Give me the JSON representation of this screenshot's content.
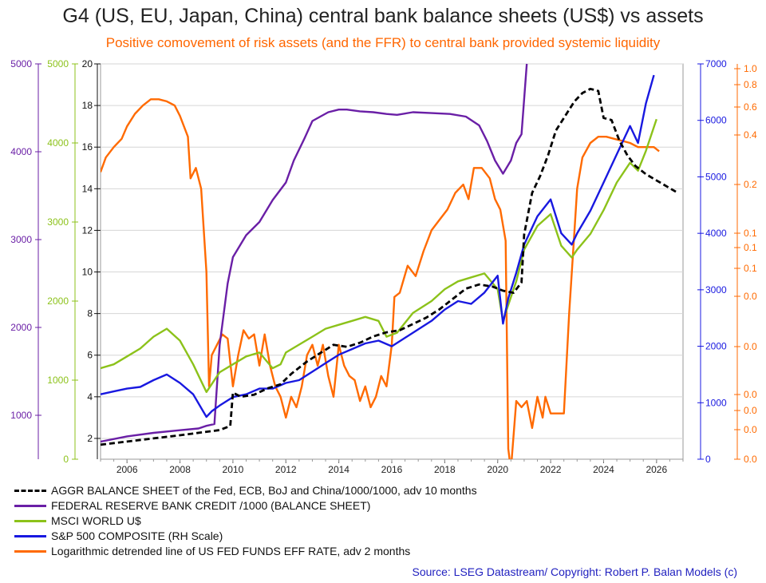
{
  "chart_data": {
    "type": "line",
    "title": "G4 (US, EU, Japan, China) central bank balance sheets (US$) vs assets",
    "subtitle": "Positive comovement of risk assets (and the FFR) to central bank provided systemic liquidity",
    "source": "Source: LSEG Datastream/ Copyright: Robert P. Balan Models (c)",
    "x_ticks": [
      "2006",
      "2008",
      "2010",
      "2012",
      "2014",
      "2016",
      "2018",
      "2020",
      "2022",
      "2024",
      "2026"
    ],
    "xlim": [
      2005.0,
      2027.0
    ],
    "grid": true,
    "axes": {
      "center": {
        "color": "#111111",
        "ticks": [
          "2",
          "4",
          "6",
          "8",
          "10",
          "12",
          "14",
          "16",
          "18",
          "20"
        ],
        "ylim": [
          1.0,
          20.0
        ]
      },
      "purple": {
        "color": "#6a1fa6",
        "ticks": [
          "1000",
          "2000",
          "3000",
          "4000",
          "5000"
        ],
        "ylim": [
          500,
          5000
        ]
      },
      "green": {
        "color": "#8cc21a",
        "ticks": [
          "0",
          "1000",
          "2000",
          "3000",
          "4000",
          "5000"
        ],
        "ylim": [
          0,
          5000
        ]
      },
      "blue": {
        "color": "#1818e0",
        "ticks": [
          "0",
          "1000",
          "2000",
          "3000",
          "4000",
          "5000",
          "6000",
          "7000"
        ],
        "ylim": [
          0,
          7000
        ]
      },
      "orange": {
        "color": "#ff6a00",
        "ticks": [
          "1.0",
          "0.8",
          "0.6",
          "0.4",
          "0.2",
          "0.1",
          "0.1",
          "0.1",
          "0.0",
          "0.0",
          "0.0",
          "0.0",
          "0.0",
          "0.0"
        ]
      }
    },
    "series": [
      {
        "name": "AGGR BALANCE SHEET of the Fed, ECB, BoJ and China/1000/1000, adv 10 months",
        "color": "#000000",
        "dashed": true,
        "axis": "center",
        "x": [
          2005.0,
          2006.0,
          2007.0,
          2008.0,
          2008.9,
          2009.2,
          2009.5,
          2009.9,
          2010.0,
          2010.3,
          2010.8,
          2011.3,
          2011.8,
          2012.2,
          2012.8,
          2013.3,
          2013.8,
          2014.3,
          2014.8,
          2015.3,
          2015.8,
          2016.3,
          2016.8,
          2017.3,
          2017.8,
          2018.3,
          2018.8,
          2019.3,
          2019.8,
          2020.2,
          2020.6,
          2020.9,
          2021.0,
          2021.3,
          2021.6,
          2021.9,
          2022.2,
          2022.6,
          2022.9,
          2023.2,
          2023.5,
          2023.8,
          2024.0,
          2024.3,
          2024.6,
          2024.9,
          2025.2,
          2025.6,
          2026.0,
          2026.4,
          2026.8
        ],
        "y": [
          1.7,
          1.85,
          2.0,
          2.15,
          2.3,
          2.35,
          2.4,
          2.6,
          4.2,
          4.0,
          4.1,
          4.4,
          4.6,
          5.1,
          5.7,
          6.1,
          6.5,
          6.4,
          6.6,
          6.9,
          7.1,
          7.2,
          7.5,
          7.8,
          8.2,
          8.7,
          9.2,
          9.4,
          9.3,
          9.1,
          9.0,
          9.5,
          11.8,
          13.8,
          14.6,
          15.6,
          16.8,
          17.6,
          18.2,
          18.6,
          18.8,
          18.7,
          17.4,
          17.3,
          16.3,
          15.6,
          15.1,
          14.7,
          14.4,
          14.1,
          13.8
        ]
      },
      {
        "name": "FEDERAL RESERVE BANK CREDIT /1000 (BALANCE SHEET)",
        "color": "#6a1fa6",
        "axis": "purple",
        "x": [
          2005.0,
          2006.0,
          2007.0,
          2008.0,
          2008.7,
          2009.0,
          2009.3,
          2009.5,
          2009.8,
          2010.0,
          2010.5,
          2011.0,
          2011.5,
          2012.0,
          2012.3,
          2012.7,
          2013.0,
          2013.3,
          2013.6,
          2014.0,
          2014.3,
          2014.8,
          2015.3,
          2015.8,
          2016.2,
          2016.8,
          2017.5,
          2018.2,
          2018.8,
          2019.3,
          2019.6,
          2019.9,
          2020.2,
          2020.5,
          2020.7,
          2020.9,
          2021.0,
          2021.1
        ],
        "y": [
          700,
          760,
          800,
          830,
          850,
          880,
          900,
          1800,
          2500,
          2800,
          3050,
          3200,
          3450,
          3650,
          3900,
          4150,
          4350,
          4400,
          4450,
          4480,
          4480,
          4460,
          4450,
          4430,
          4420,
          4450,
          4440,
          4430,
          4400,
          4300,
          4120,
          3900,
          3750,
          3900,
          4100,
          4200,
          4600,
          5000
        ]
      },
      {
        "name": "MSCI WORLD U$",
        "color": "#8cc21a",
        "axis": "green",
        "x": [
          2005.0,
          2005.5,
          2006.0,
          2006.5,
          2007.0,
          2007.5,
          2008.0,
          2008.5,
          2009.0,
          2009.2,
          2009.5,
          2010.0,
          2010.5,
          2011.0,
          2011.5,
          2011.8,
          2012.0,
          2012.5,
          2013.0,
          2013.5,
          2014.0,
          2014.5,
          2015.0,
          2015.5,
          2015.8,
          2016.2,
          2016.8,
          2017.5,
          2018.0,
          2018.5,
          2019.0,
          2019.5,
          2020.0,
          2020.2,
          2020.4,
          2020.7,
          2021.0,
          2021.5,
          2022.0,
          2022.4,
          2022.8,
          2023.0,
          2023.5,
          2024.0,
          2024.5,
          2025.0,
          2025.3,
          2025.6,
          2026.0
        ],
        "y": [
          1150,
          1200,
          1300,
          1400,
          1550,
          1650,
          1500,
          1200,
          850,
          950,
          1100,
          1200,
          1300,
          1350,
          1150,
          1200,
          1350,
          1450,
          1550,
          1650,
          1700,
          1750,
          1800,
          1750,
          1550,
          1600,
          1850,
          2000,
          2150,
          2250,
          2300,
          2350,
          2150,
          1750,
          1950,
          2250,
          2650,
          2950,
          3100,
          2700,
          2550,
          2650,
          2850,
          3150,
          3500,
          3750,
          3650,
          3900,
          4300
        ]
      },
      {
        "name": "S&P 500 COMPOSITE (RH Scale)",
        "color": "#1818e0",
        "axis": "blue",
        "x": [
          2005.0,
          2005.5,
          2006.0,
          2006.5,
          2007.0,
          2007.5,
          2008.0,
          2008.5,
          2009.0,
          2009.2,
          2009.5,
          2010.0,
          2010.5,
          2011.0,
          2011.5,
          2012.0,
          2012.5,
          2013.0,
          2013.5,
          2014.0,
          2014.5,
          2015.0,
          2015.5,
          2016.0,
          2016.5,
          2017.0,
          2017.5,
          2018.0,
          2018.5,
          2019.0,
          2019.5,
          2020.0,
          2020.2,
          2020.4,
          2020.7,
          2021.0,
          2021.5,
          2022.0,
          2022.4,
          2022.8,
          2023.0,
          2023.5,
          2024.0,
          2024.5,
          2025.0,
          2025.3,
          2025.6,
          2025.9
        ],
        "y": [
          1150,
          1200,
          1250,
          1280,
          1400,
          1500,
          1350,
          1150,
          750,
          850,
          950,
          1100,
          1150,
          1250,
          1250,
          1350,
          1400,
          1550,
          1700,
          1850,
          1950,
          2050,
          2100,
          2000,
          2150,
          2300,
          2450,
          2650,
          2800,
          2750,
          2950,
          3250,
          2400,
          2850,
          3300,
          3800,
          4300,
          4600,
          4000,
          3800,
          4000,
          4400,
          4900,
          5400,
          5900,
          5600,
          6300,
          6800
        ]
      },
      {
        "name": "Logarithmic detrended line of US FED FUNDS EFF RATE, adv 2 months",
        "color": "#ff6a00",
        "axis": "center",
        "x": [
          2005.0,
          2005.2,
          2005.5,
          2005.8,
          2006.0,
          2006.3,
          2006.6,
          2006.9,
          2007.2,
          2007.5,
          2007.8,
          2008.0,
          2008.3,
          2008.4,
          2008.6,
          2008.8,
          2009.0,
          2009.1,
          2009.2,
          2009.4,
          2009.6,
          2009.8,
          2010.0,
          2010.2,
          2010.4,
          2010.6,
          2010.8,
          2011.0,
          2011.2,
          2011.4,
          2011.6,
          2011.8,
          2012.0,
          2012.2,
          2012.4,
          2012.6,
          2012.8,
          2013.0,
          2013.2,
          2013.4,
          2013.6,
          2013.8,
          2014.0,
          2014.2,
          2014.4,
          2014.6,
          2014.8,
          2015.0,
          2015.2,
          2015.4,
          2015.6,
          2015.8,
          2016.0,
          2016.1,
          2016.3,
          2016.6,
          2016.9,
          2017.2,
          2017.5,
          2017.8,
          2018.1,
          2018.4,
          2018.7,
          2018.9,
          2019.1,
          2019.4,
          2019.7,
          2019.9,
          2020.1,
          2020.3,
          2020.4,
          2020.5,
          2020.7,
          2020.9,
          2021.1,
          2021.3,
          2021.5,
          2021.7,
          2021.8,
          2022.0,
          2022.2,
          2022.5,
          2022.7,
          2022.9,
          2023.0,
          2023.2,
          2023.5,
          2023.8,
          2024.1,
          2024.4,
          2024.7,
          2025.0,
          2025.3,
          2025.6,
          2025.9,
          2026.1
        ],
        "y": [
          14.8,
          15.5,
          16.0,
          16.4,
          17.0,
          17.6,
          18.0,
          18.3,
          18.3,
          18.2,
          18.0,
          17.5,
          16.5,
          14.5,
          15.0,
          14.0,
          10.0,
          4.5,
          6.0,
          6.5,
          7.0,
          6.8,
          4.5,
          6.0,
          7.2,
          6.8,
          7.0,
          5.5,
          7.0,
          5.5,
          4.5,
          4.0,
          3.0,
          4.0,
          3.5,
          4.5,
          6.0,
          6.5,
          5.5,
          6.5,
          5.0,
          4.0,
          6.5,
          5.5,
          5.0,
          4.8,
          3.8,
          4.5,
          3.5,
          4.0,
          5.0,
          4.5,
          6.5,
          8.8,
          9.0,
          10.3,
          9.8,
          11.0,
          12.0,
          12.5,
          13.0,
          13.8,
          14.2,
          13.5,
          15.0,
          15.0,
          14.5,
          13.5,
          13.0,
          11.5,
          1.5,
          0.5,
          3.8,
          3.5,
          3.8,
          2.5,
          4.0,
          3.0,
          4.0,
          3.2,
          3.2,
          3.2,
          8.0,
          12.0,
          14.0,
          15.5,
          16.2,
          16.5,
          16.5,
          16.4,
          16.3,
          16.2,
          16.0,
          16.0,
          16.0,
          15.8
        ]
      }
    ]
  },
  "legend_entries": [
    "AGGR BALANCE SHEET of the Fed, ECB, BoJ and China/1000/1000, adv 10 months",
    "FEDERAL RESERVE BANK CREDIT /1000 (BALANCE SHEET)",
    "MSCI WORLD U$",
    "S&P 500 COMPOSITE (RH Scale)",
    "Logarithmic detrended line of US FED FUNDS EFF RATE, adv 2 months"
  ]
}
